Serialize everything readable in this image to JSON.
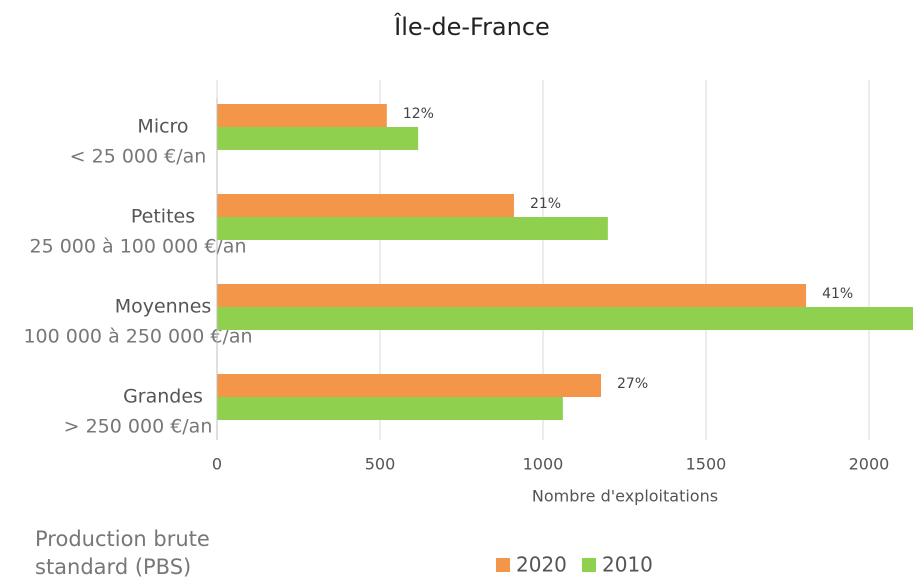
{
  "chart_data": {
    "type": "bar",
    "orientation": "horizontal",
    "title": "Île-de-France",
    "categories": [
      "Micro",
      "Petites",
      "Moyennes",
      "Grandes"
    ],
    "category_sublabels": [
      "< 25 000 €/an",
      "25 000 à 100 000 €/an",
      "100 000 à 250 000 €/an",
      "> 250 000 €/an"
    ],
    "series": [
      {
        "name": "2020",
        "color": "#f4964a",
        "values": [
          521,
          911,
          1807,
          1178
        ],
        "share_labels": [
          "12%",
          "21%",
          "41%",
          "27%"
        ]
      },
      {
        "name": "2010",
        "color": "#8fd14f",
        "values": [
          617,
          1199,
          2200,
          1061
        ]
      }
    ],
    "xlim": [
      0,
      2135
    ],
    "xticks": [
      0,
      500,
      1000,
      1500,
      2000
    ],
    "xlabel": "Nombre d'exploitations",
    "grid": true,
    "note": [
      "Production brute",
      "standard (PBS)"
    ]
  }
}
